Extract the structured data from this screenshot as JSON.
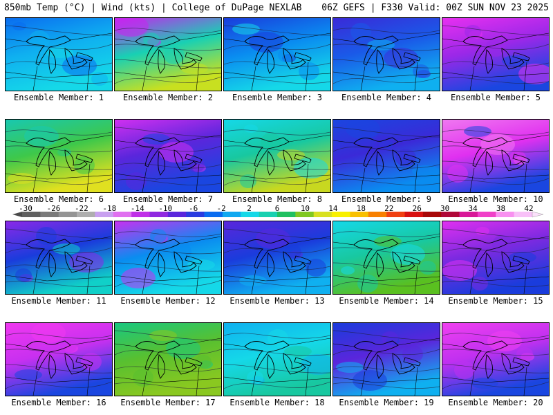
{
  "header": {
    "left": "850mb Temp (°C) | Wind (kts) | College of DuPage NEXLAB",
    "right": "06Z GEFS | F330 Valid: 00Z SUN NOV 23 2025"
  },
  "caption_prefix": "Ensemble Member: ",
  "members": [
    {
      "label": "Ensemble Member: 1",
      "colors": [
        "#0a6cf0",
        "#0fb0f0",
        "#15d8e8"
      ]
    },
    {
      "label": "Ensemble Member: 2",
      "colors": [
        "#c822f0",
        "#18d0b4",
        "#c8e020"
      ]
    },
    {
      "label": "Ensemble Member: 3",
      "colors": [
        "#1a3cdc",
        "#0a8cf0",
        "#15d8e8"
      ]
    },
    {
      "label": "Ensemble Member: 4",
      "colors": [
        "#3a2ad8",
        "#1a5ae8",
        "#0fb0f0"
      ]
    },
    {
      "label": "Ensemble Member: 5",
      "colors": [
        "#e830f0",
        "#9a28e8",
        "#1a46e0"
      ]
    },
    {
      "label": "Ensemble Member: 6",
      "colors": [
        "#18c8b0",
        "#3ec84a",
        "#e0e020"
      ]
    },
    {
      "label": "Ensemble Member: 7",
      "colors": [
        "#d030f0",
        "#5a26dc",
        "#1a46e0"
      ]
    },
    {
      "label": "Ensemble Member: 8",
      "colors": [
        "#15d8e8",
        "#18c8a0",
        "#c8d820"
      ]
    },
    {
      "label": "Ensemble Member: 9",
      "colors": [
        "#1a46e0",
        "#3a2ad8",
        "#0a8cf0"
      ]
    },
    {
      "label": "Ensemble Member: 10",
      "colors": [
        "#f078f0",
        "#e030f0",
        "#1a46e0"
      ]
    },
    {
      "label": "Ensemble Member: 11",
      "colors": [
        "#8a28e8",
        "#1a3cdc",
        "#10d0c8"
      ]
    },
    {
      "label": "Ensemble Member: 12",
      "colors": [
        "#c830f0",
        "#0a8cf0",
        "#15d8e8"
      ]
    },
    {
      "label": "Ensemble Member: 13",
      "colors": [
        "#5a26dc",
        "#1a3cdc",
        "#0fb0f0"
      ]
    },
    {
      "label": "Ensemble Member: 14",
      "colors": [
        "#15d8e8",
        "#18c8a0",
        "#5ac020"
      ]
    },
    {
      "label": "Ensemble Member: 15",
      "colors": [
        "#e030f0",
        "#7a2ae0",
        "#1a3cdc"
      ]
    },
    {
      "label": "Ensemble Member: 16",
      "colors": [
        "#f038f0",
        "#c830f0",
        "#1a46e0"
      ]
    },
    {
      "label": "Ensemble Member: 17",
      "colors": [
        "#18c880",
        "#58c030",
        "#8ac820"
      ]
    },
    {
      "label": "Ensemble Member: 18",
      "colors": [
        "#0fb0f0",
        "#15d8e8",
        "#18c8a0"
      ]
    },
    {
      "label": "Ensemble Member: 19",
      "colors": [
        "#1a3cdc",
        "#5a26dc",
        "#0fb0f0"
      ]
    },
    {
      "label": "Ensemble Member: 20",
      "colors": [
        "#f040f0",
        "#c030f0",
        "#1a46e0"
      ]
    }
  ],
  "colorbar": {
    "ticks": [
      "-30",
      "-26",
      "-22",
      "-18",
      "-14",
      "-10",
      "-6",
      "-2",
      "2",
      "6",
      "10",
      "14",
      "18",
      "22",
      "26",
      "30",
      "34",
      "38",
      "42"
    ],
    "colors": [
      "#606060",
      "#7a7a7a",
      "#949494",
      "#aeaeae",
      "#c8a0f0",
      "#e070f0",
      "#c030e8",
      "#9028e0",
      "#5a26dc",
      "#2a3ce0",
      "#0a6cf0",
      "#10a8f0",
      "#15d8e8",
      "#18d0b0",
      "#20c060",
      "#80c820",
      "#d8e020",
      "#f8f000",
      "#f8c000",
      "#f88000",
      "#f04010",
      "#d81010",
      "#a80808",
      "#b00838",
      "#d81898",
      "#f040c8",
      "#f890f0",
      "#f8c0f8"
    ]
  }
}
